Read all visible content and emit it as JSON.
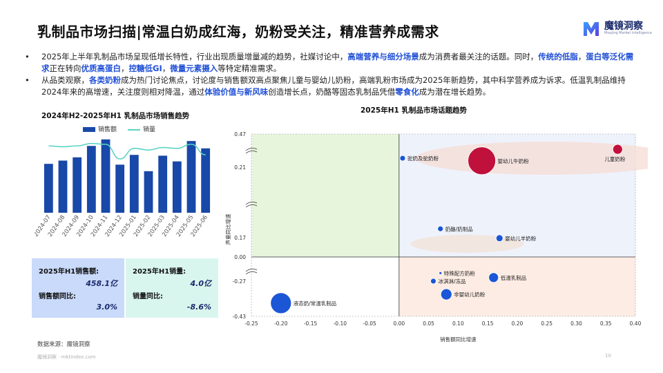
{
  "header": {
    "title": "乳制品市场扫描|常温白奶成红海，奶粉受关注，精准营养成需求",
    "logo_name": "魔镜洞察",
    "logo_sub": "Moojing Market Intelligence"
  },
  "bullets": [
    {
      "segments": [
        {
          "t": "2025年上半年乳制品市场呈现低增长特性，行业出现质量增量减的趋势，社媒讨论中，",
          "h": false
        },
        {
          "t": "高端营养与细分场景",
          "h": true
        },
        {
          "t": "成为消费者最关注的话题。同时，",
          "h": false
        },
        {
          "t": "传统的低脂",
          "h": true
        },
        {
          "t": "，",
          "h": false
        },
        {
          "t": "蛋白等泛化需求",
          "h": true
        },
        {
          "t": "正在转向",
          "h": false
        },
        {
          "t": "优质高蛋白",
          "h": true
        },
        {
          "t": "，",
          "h": false
        },
        {
          "t": "控糖低GI",
          "h": true
        },
        {
          "t": "，",
          "h": false
        },
        {
          "t": "微量元素摄入",
          "h": true
        },
        {
          "t": "等特定精准需求。",
          "h": false
        }
      ]
    },
    {
      "segments": [
        {
          "t": "从品类观察，",
          "h": false
        },
        {
          "t": "各类奶粉",
          "h": true
        },
        {
          "t": "成为热门讨论焦点，讨论度与销售额双高点聚焦儿童与婴幼儿奶粉，高端乳粉市场成为2025年新趋势，其中科学营养成为诉求。低温乳制品维持2024年来的高增速，关注度则相对降温，通过",
          "h": false
        },
        {
          "t": "体验价值与新风味",
          "h": true
        },
        {
          "t": "创造增长点，奶酪等固态乳制品凭借",
          "h": false
        },
        {
          "t": "零食化",
          "h": true
        },
        {
          "t": "成为潜在增长趋势。",
          "h": false
        }
      ]
    }
  ],
  "left_chart_title": "2024年H2-2025年H1 乳制品市场销售趋势",
  "right_chart_title": "2025年H1 乳制品市场话题趋势",
  "kpis": {
    "sales_label": "2025年H1销售额:",
    "sales_value": "458.1亿",
    "sales_yoy_label": "销售额同比:",
    "sales_yoy_value": "3.0%",
    "volume_label": "2025年H1销量:",
    "volume_value": "4.0亿",
    "volume_yoy_label": "销量同比:",
    "volume_yoy_value": "-8.6%"
  },
  "source": "数据来源：魔镜洞察",
  "footer": "魔镜洞察 · mktindex.com",
  "page_number": "10",
  "colors": {
    "bar": "#1848a8",
    "line": "#5dd3c4",
    "kpi_blue_bg": "#c9dafa",
    "kpi_green_bg": "#d9f6ee",
    "bubble_blue": "#1a56d6",
    "bubble_red": "#c0103c",
    "quad_green": "#e7f5dd",
    "quad_blue": "#eef2fb",
    "quad_orange": "#fdece3",
    "highlight": "#1f4fd6"
  },
  "chart_data": [
    {
      "type": "bar",
      "title": "2024年H2-2025年H1 乳制品市场销售趋势",
      "categories": [
        "2024-07",
        "2024-08",
        "2024-09",
        "2024-10",
        "2024-11",
        "2024-12",
        "2025-01",
        "2025-02",
        "2025-03",
        "2025-04",
        "2025-05",
        "2025-06"
      ],
      "series": [
        {
          "name": "销售额",
          "kind": "bar",
          "values": [
            60,
            64,
            68,
            82,
            90,
            59,
            71,
            51,
            70,
            63,
            88,
            79
          ]
        },
        {
          "name": "销量",
          "kind": "line",
          "values": [
            82,
            81,
            82,
            85,
            84,
            66,
            79,
            77,
            80,
            79,
            84,
            71
          ]
        }
      ],
      "ylim": [
        0,
        100
      ],
      "legend": "top"
    },
    {
      "type": "scatter",
      "title": "2025年H1 乳制品市场话题趋势",
      "xlabel": "销售额同比增速",
      "ylabel": "声量同比增速",
      "xlim": [
        -0.25,
        0.4
      ],
      "x_ticks": [
        "-0.25",
        "-0.20",
        "-0.15",
        "-0.10",
        "-0.05",
        "0.00",
        "0.05",
        "0.10",
        "0.15",
        "0.20",
        "0.25",
        "0.30",
        "0.35",
        "0.40"
      ],
      "y_ticks": [
        "0.47",
        "0.21",
        "0.17",
        "0.00",
        "-0.27",
        "-0.43"
      ],
      "points": [
        {
          "label": "驼奶及驼奶粉",
          "x": 0.006,
          "y": 0.28,
          "size": 4,
          "color": "blue"
        },
        {
          "label": "婴幼儿牛奶粉",
          "x": 0.14,
          "y": 0.26,
          "size": 20,
          "color": "red"
        },
        {
          "label": "儿童奶粉",
          "x": 0.37,
          "y": 0.35,
          "size": 7,
          "color": "red"
        },
        {
          "label": "奶酪/奶制品",
          "x": 0.07,
          "y": 0.175,
          "size": 4,
          "color": "blue"
        },
        {
          "label": "婴幼儿羊奶粉",
          "x": 0.17,
          "y": 0.165,
          "size": 5,
          "color": "blue"
        },
        {
          "label": "特殊配方奶粉",
          "x": 0.07,
          "y": -0.18,
          "size": 2,
          "color": "blue"
        },
        {
          "label": "低温乳制品",
          "x": 0.16,
          "y": -0.23,
          "size": 7,
          "color": "blue"
        },
        {
          "label": "冰淇淋/冻品",
          "x": 0.058,
          "y": -0.27,
          "size": 4,
          "color": "blue"
        },
        {
          "label": "非婴幼儿奶粉",
          "x": 0.08,
          "y": -0.33,
          "size": 8,
          "color": "blue"
        },
        {
          "label": "液态奶/常温乳制品",
          "x": -0.2,
          "y": -0.37,
          "size": 15,
          "color": "blue"
        }
      ]
    }
  ]
}
